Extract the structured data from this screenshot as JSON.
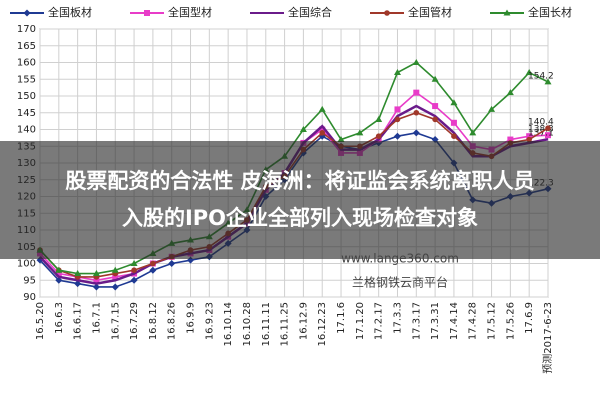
{
  "chart_data": {
    "type": "line",
    "categories": [
      "16.5.20",
      "16.6.3",
      "16.6.17",
      "16.7.1",
      "16.7.15",
      "16.7.29",
      "16.8.12",
      "16.8.26",
      "16.9.9",
      "16.9.23",
      "16.10.14",
      "16.10.28",
      "16.11.11",
      "16.11.25",
      "16.12.9",
      "16.12.23",
      "17.1.6",
      "17.1.20",
      "17.2.17",
      "17.3.3",
      "17.3.17",
      "17.3.31",
      "17.4.14",
      "17.4.28",
      "17.5.12",
      "17.5.26",
      "17.6.9",
      "预测2017-6-23"
    ],
    "series": [
      {
        "name": "全国板材",
        "color": "#1f3a93",
        "marker": "diamond",
        "values": [
          101,
          95,
          94,
          93,
          93,
          95,
          98,
          100,
          101,
          102,
          106,
          110,
          120,
          125,
          133,
          138,
          135,
          134,
          136,
          138,
          139,
          137,
          130,
          119,
          118,
          120,
          121,
          122.3
        ]
      },
      {
        "name": "全国型材",
        "color": "#e83cc8",
        "marker": "square",
        "values": [
          103,
          97,
          96,
          95,
          96,
          97,
          100,
          102,
          103,
          104,
          108,
          112,
          122,
          127,
          136,
          140,
          133,
          133,
          137,
          146,
          151,
          147,
          142,
          135,
          134,
          137,
          138,
          138.3
        ]
      },
      {
        "name": "全国综合",
        "color": "#6a1b8a",
        "marker": "none",
        "values": [
          102,
          96,
          95,
          94,
          95,
          97,
          100,
          102,
          103,
          104,
          108,
          112,
          122,
          127,
          136,
          141,
          134,
          134,
          137,
          144,
          147,
          144,
          139,
          132,
          132,
          135,
          136,
          137.1
        ]
      },
      {
        "name": "全国管材",
        "color": "#a0382a",
        "marker": "circle",
        "values": [
          104,
          98,
          96,
          96,
          97,
          98,
          100,
          102,
          104,
          105,
          109,
          113,
          123,
          126,
          134,
          139,
          135,
          135,
          138,
          143,
          145,
          143,
          138,
          133,
          132,
          136,
          137,
          140.4
        ]
      },
      {
        "name": "全国长材",
        "color": "#2e8b2e",
        "marker": "triangle",
        "values": [
          104,
          98,
          97,
          97,
          98,
          100,
          103,
          106,
          107,
          108,
          112,
          116,
          128,
          132,
          140,
          146,
          137,
          139,
          143,
          157,
          160,
          155,
          148,
          139,
          146,
          151,
          157,
          154.2
        ]
      }
    ],
    "ylim": [
      90,
      170
    ],
    "yticks": [
      90,
      95,
      100,
      105,
      110,
      115,
      120,
      125,
      130,
      135,
      140,
      145,
      150,
      155,
      160,
      165,
      170
    ],
    "grid": true,
    "legend": "top"
  },
  "watermark": [
    "www.lange360.com",
    "兰格钢铁云商平台"
  ],
  "banner": {
    "lines": [
      "股票配资的合法性 皮海洲：将证监会系统离职人员",
      "入股的IPO企业全部列入现场检查对象"
    ]
  }
}
